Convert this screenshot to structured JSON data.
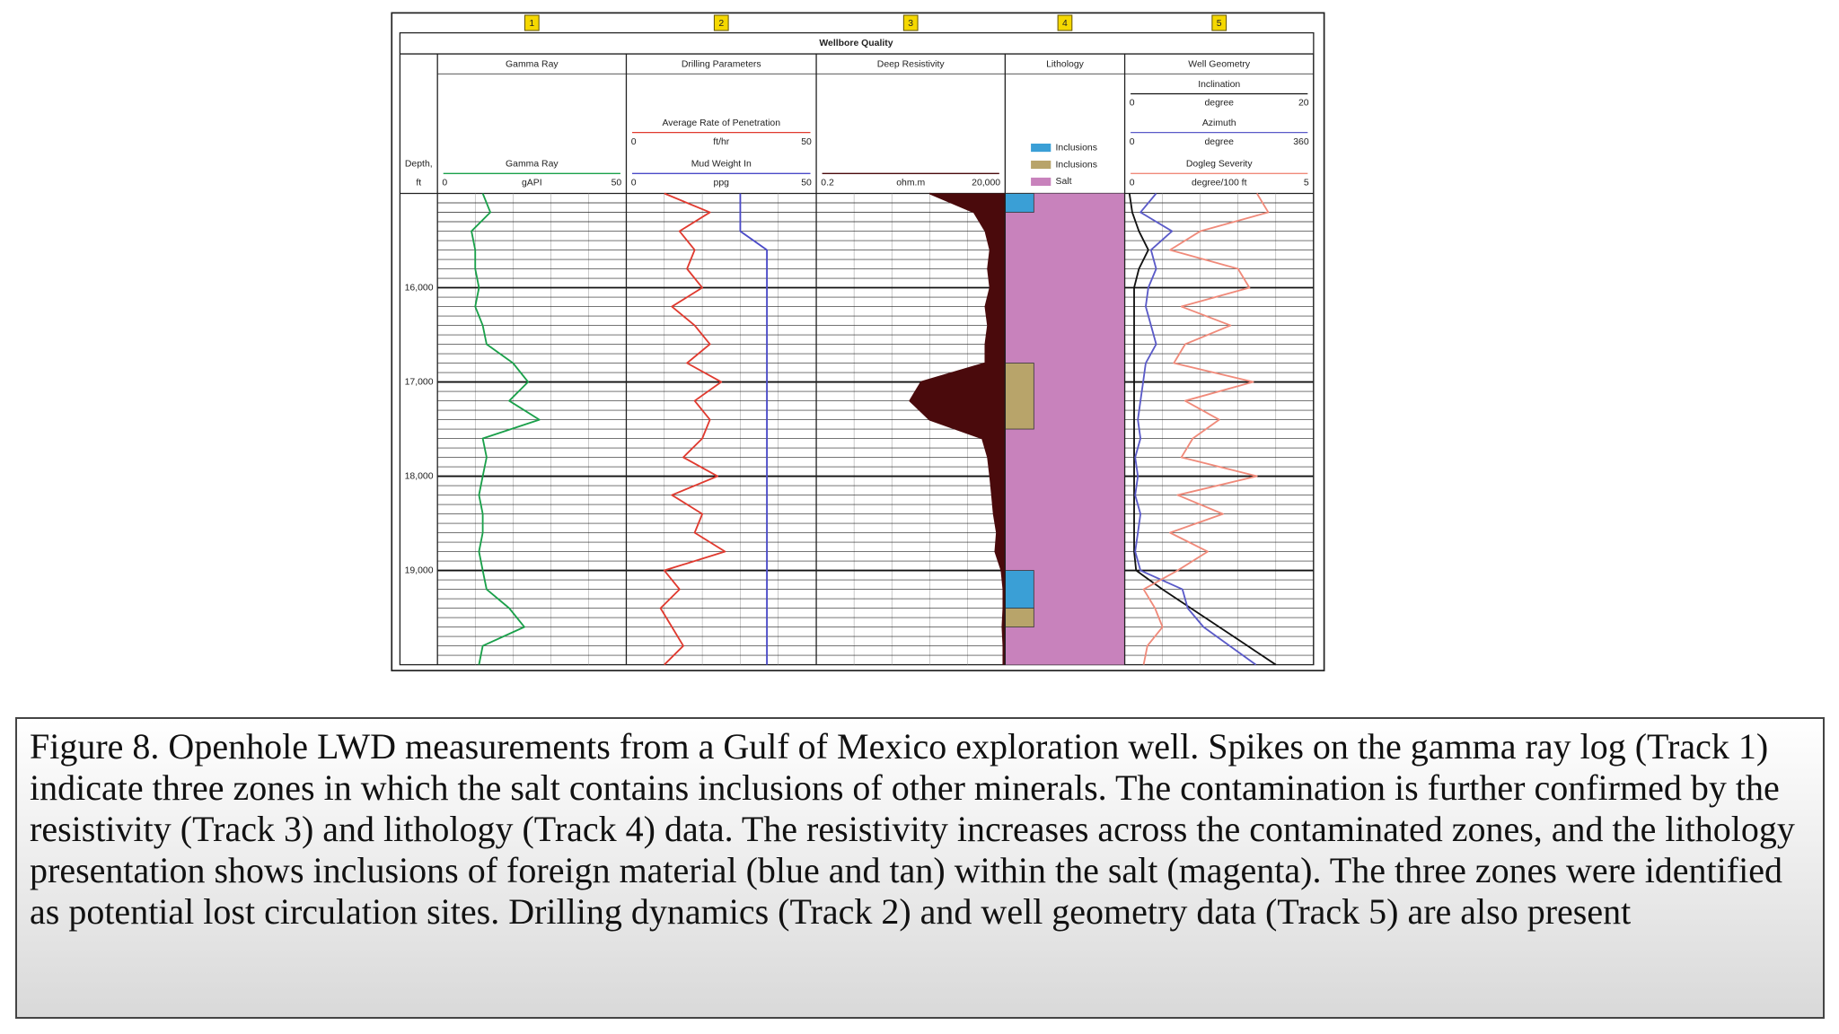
{
  "figure": {
    "track_numbers": [
      "1",
      "2",
      "3",
      "4",
      "5"
    ],
    "title": "Wellbore Quality",
    "depth_header": [
      "Depth,",
      "ft"
    ],
    "depth_range": [
      15000,
      20000
    ],
    "depth_ticks": [
      {
        "value": 16000,
        "label": "16,000"
      },
      {
        "value": 17000,
        "label": "17,000"
      },
      {
        "value": 18000,
        "label": "18,000"
      },
      {
        "value": 19000,
        "label": "19,000"
      }
    ],
    "depth_grid_step": 100,
    "depths": [
      15000,
      15200,
      15400,
      15600,
      15800,
      16000,
      16200,
      16400,
      16600,
      16800,
      17000,
      17200,
      17400,
      17600,
      17800,
      18000,
      18200,
      18400,
      18600,
      18800,
      19000,
      19200,
      19400,
      19600,
      19800,
      20000
    ],
    "tracks": [
      {
        "title": "Gamma Ray",
        "curves": [
          {
            "name": "Gamma Ray",
            "unit": "gAPI",
            "scale": [
              0,
              50
            ],
            "color": "#1aa04a",
            "values": [
              12,
              14,
              9,
              10,
              10,
              11,
              10,
              12,
              13,
              20,
              24,
              19,
              27,
              12,
              13,
              12,
              11,
              12,
              12,
              11,
              12,
              13,
              19,
              23,
              12,
              11
            ]
          }
        ]
      },
      {
        "title": "Drilling Parameters",
        "curves": [
          {
            "name": "Average Rate of Penetration",
            "unit": "ft/hr",
            "scale": [
              0,
              50
            ],
            "color": "#e03a2f",
            "values": [
              10,
              22,
              14,
              18,
              16,
              20,
              12,
              18,
              22,
              16,
              25,
              18,
              22,
              20,
              15,
              24,
              12,
              20,
              18,
              26,
              10,
              14,
              9,
              12,
              15,
              10
            ]
          },
          {
            "name": "Mud Weight In",
            "unit": "ppg",
            "scale": [
              0,
              50
            ],
            "color": "#4a4ac8",
            "values": [
              30,
              30,
              30,
              37,
              37,
              37,
              37,
              37,
              37,
              37,
              37,
              37,
              37,
              37,
              37,
              37,
              37,
              37,
              37,
              37,
              37,
              37,
              37,
              37,
              37,
              37
            ]
          }
        ]
      },
      {
        "title": "Deep Resistivity",
        "curves": [
          {
            "unit": "ohm.m",
            "scale": [
              0.2,
              {
                "value": 20000,
                "label": "20,000"
              }
            ],
            "log": true,
            "fill": true,
            "color": "#4a0a0c",
            "values": [
              200,
              3000,
              6000,
              8000,
              7000,
              8000,
              6000,
              7000,
              6000,
              6000,
              120,
              60,
              200,
              5000,
              7000,
              8000,
              9000,
              10000,
              12000,
              11000,
              16000,
              18000,
              18000,
              17000,
              18000,
              18000
            ]
          }
        ]
      },
      {
        "title": "Lithology",
        "legend": [
          {
            "name": "Inclusions",
            "color": "#3a9fd6",
            "intervals": [
              [
                15000,
                15200
              ],
              [
                19000,
                19400
              ]
            ]
          },
          {
            "name": "Inclusions",
            "color": "#b8a46a",
            "intervals": [
              [
                16800,
                17500
              ],
              [
                19400,
                19600
              ]
            ]
          },
          {
            "name": "Salt",
            "color": "#c882bc",
            "intervals": [
              [
                15000,
                20000
              ]
            ]
          }
        ]
      },
      {
        "title": "Well Geometry",
        "curves": [
          {
            "name": "Inclination",
            "unit": "degree",
            "scale": [
              0,
              20
            ],
            "color": "#111111",
            "values": [
              0.5,
              0.8,
              1.5,
              2.5,
              1.5,
              1,
              1,
              1,
              1,
              1,
              1,
              1,
              1,
              1,
              1,
              1,
              1,
              1,
              1,
              1,
              1.2,
              4,
              7,
              10,
              13,
              16
            ]
          },
          {
            "name": "Azimuth",
            "unit": "degree",
            "scale": [
              0,
              360
            ],
            "color": "#5a5ac8",
            "values": [
              60,
              30,
              90,
              50,
              60,
              45,
              40,
              50,
              60,
              40,
              35,
              30,
              25,
              30,
              20,
              25,
              20,
              30,
              25,
              20,
              30,
              110,
              120,
              150,
              200,
              250
            ]
          },
          {
            "name": "Dogleg Severity",
            "unit": "degree/100 ft",
            "scale": [
              0,
              5
            ],
            "color": "#f08a7a",
            "values": [
              3.5,
              3.8,
              2,
              1.2,
              3,
              3.3,
              1.5,
              2.8,
              1.6,
              1.3,
              3.4,
              1.6,
              2.5,
              1.8,
              1.5,
              3.5,
              1.4,
              2.6,
              1.2,
              2.2,
              1.4,
              0.5,
              0.8,
              1,
              0.6,
              0.5
            ]
          }
        ]
      }
    ]
  },
  "caption": "Figure 8. Openhole LWD measurements from a Gulf of Mexico exploration well. Spikes on the gamma ray log (Track 1) indicate three zones in which the salt contains inclusions of other minerals. The contamination is further confirmed by the resistivity (Track 3) and lithology (Track 4) data. The resistivity increases across the contaminated zones, and the lithology presentation shows inclusions of foreign material (blue and tan) within the salt (magenta). The three zones were identified as potential lost circulation sites. Drilling dynamics (Track 2) and well geometry data (Track 5) are also present"
}
